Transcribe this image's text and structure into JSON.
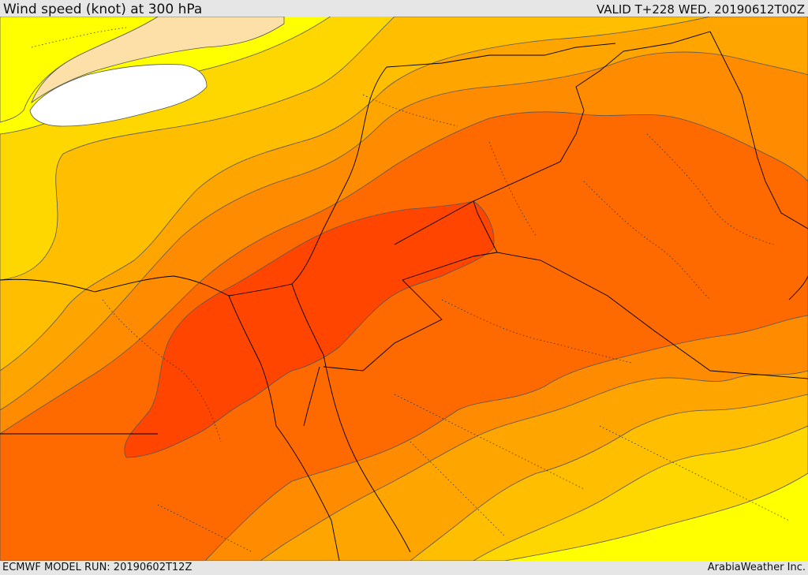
{
  "header": {
    "title": "Wind speed (knot) at 300 hPa",
    "valid": "VALID T+228 WED. 20190612T00Z"
  },
  "footer": {
    "model_run": "ECMWF MODEL RUN: 20190602T12Z",
    "credit": "ArabiaWeather Inc."
  },
  "map": {
    "field": "wind speed",
    "level": "300 hPa",
    "colors": {
      "very_low": "#ffffff",
      "low": "#fde0a8",
      "yellow": "#ffff00",
      "light_orange": "#ffd700",
      "orange_1": "#ffbf00",
      "orange_2": "#ffa500",
      "orange_3": "#ff8c00",
      "orange_4": "#ff6a00",
      "red_orange": "#ff4500",
      "land_border": "#000000",
      "contour": "#555555"
    }
  }
}
